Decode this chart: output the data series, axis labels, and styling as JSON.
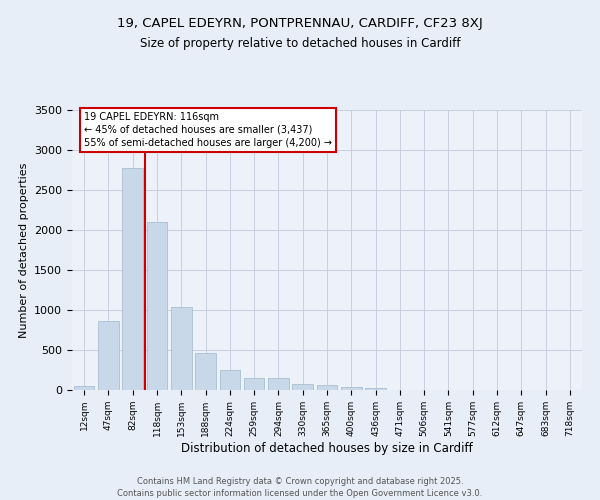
{
  "title1": "19, CAPEL EDEYRN, PONTPRENNAU, CARDIFF, CF23 8XJ",
  "title2": "Size of property relative to detached houses in Cardiff",
  "xlabel": "Distribution of detached houses by size in Cardiff",
  "ylabel": "Number of detached properties",
  "bar_color": "#c8d8e8",
  "bar_edge_color": "#a0b8cc",
  "categories": [
    "12sqm",
    "47sqm",
    "82sqm",
    "118sqm",
    "153sqm",
    "188sqm",
    "224sqm",
    "259sqm",
    "294sqm",
    "330sqm",
    "365sqm",
    "400sqm",
    "436sqm",
    "471sqm",
    "506sqm",
    "541sqm",
    "577sqm",
    "612sqm",
    "647sqm",
    "683sqm",
    "718sqm"
  ],
  "values": [
    55,
    860,
    2780,
    2100,
    1035,
    460,
    250,
    150,
    155,
    70,
    60,
    35,
    20,
    0,
    5,
    0,
    0,
    5,
    0,
    0,
    0
  ],
  "ylim": [
    0,
    3500
  ],
  "yticks": [
    0,
    500,
    1000,
    1500,
    2000,
    2500,
    3000,
    3500
  ],
  "property_line_color": "#cc0000",
  "annotation_text": "19 CAPEL EDEYRN: 116sqm\n← 45% of detached houses are smaller (3,437)\n55% of semi-detached houses are larger (4,200) →",
  "annotation_box_color": "#cc0000",
  "footer1": "Contains HM Land Registry data © Crown copyright and database right 2025.",
  "footer2": "Contains public sector information licensed under the Open Government Licence v3.0.",
  "bg_color": "#e8eef8",
  "plot_bg_color": "#edf2fa",
  "grid_color": "#c8d0e0"
}
